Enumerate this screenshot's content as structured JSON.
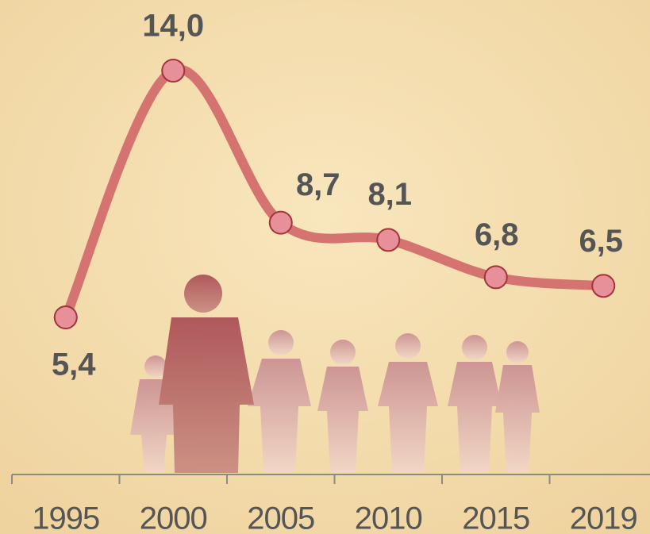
{
  "chart_data": {
    "type": "line",
    "categories": [
      "1995",
      "2000",
      "2005",
      "2010",
      "2015",
      "2019"
    ],
    "values": [
      5.4,
      14.0,
      8.7,
      8.1,
      6.8,
      6.5
    ],
    "value_labels": [
      "5,4",
      "14,0",
      "8,7",
      "8,1",
      "6,8",
      "6,5"
    ],
    "color": "#d4736f",
    "marker_color": "#e8909a"
  }
}
